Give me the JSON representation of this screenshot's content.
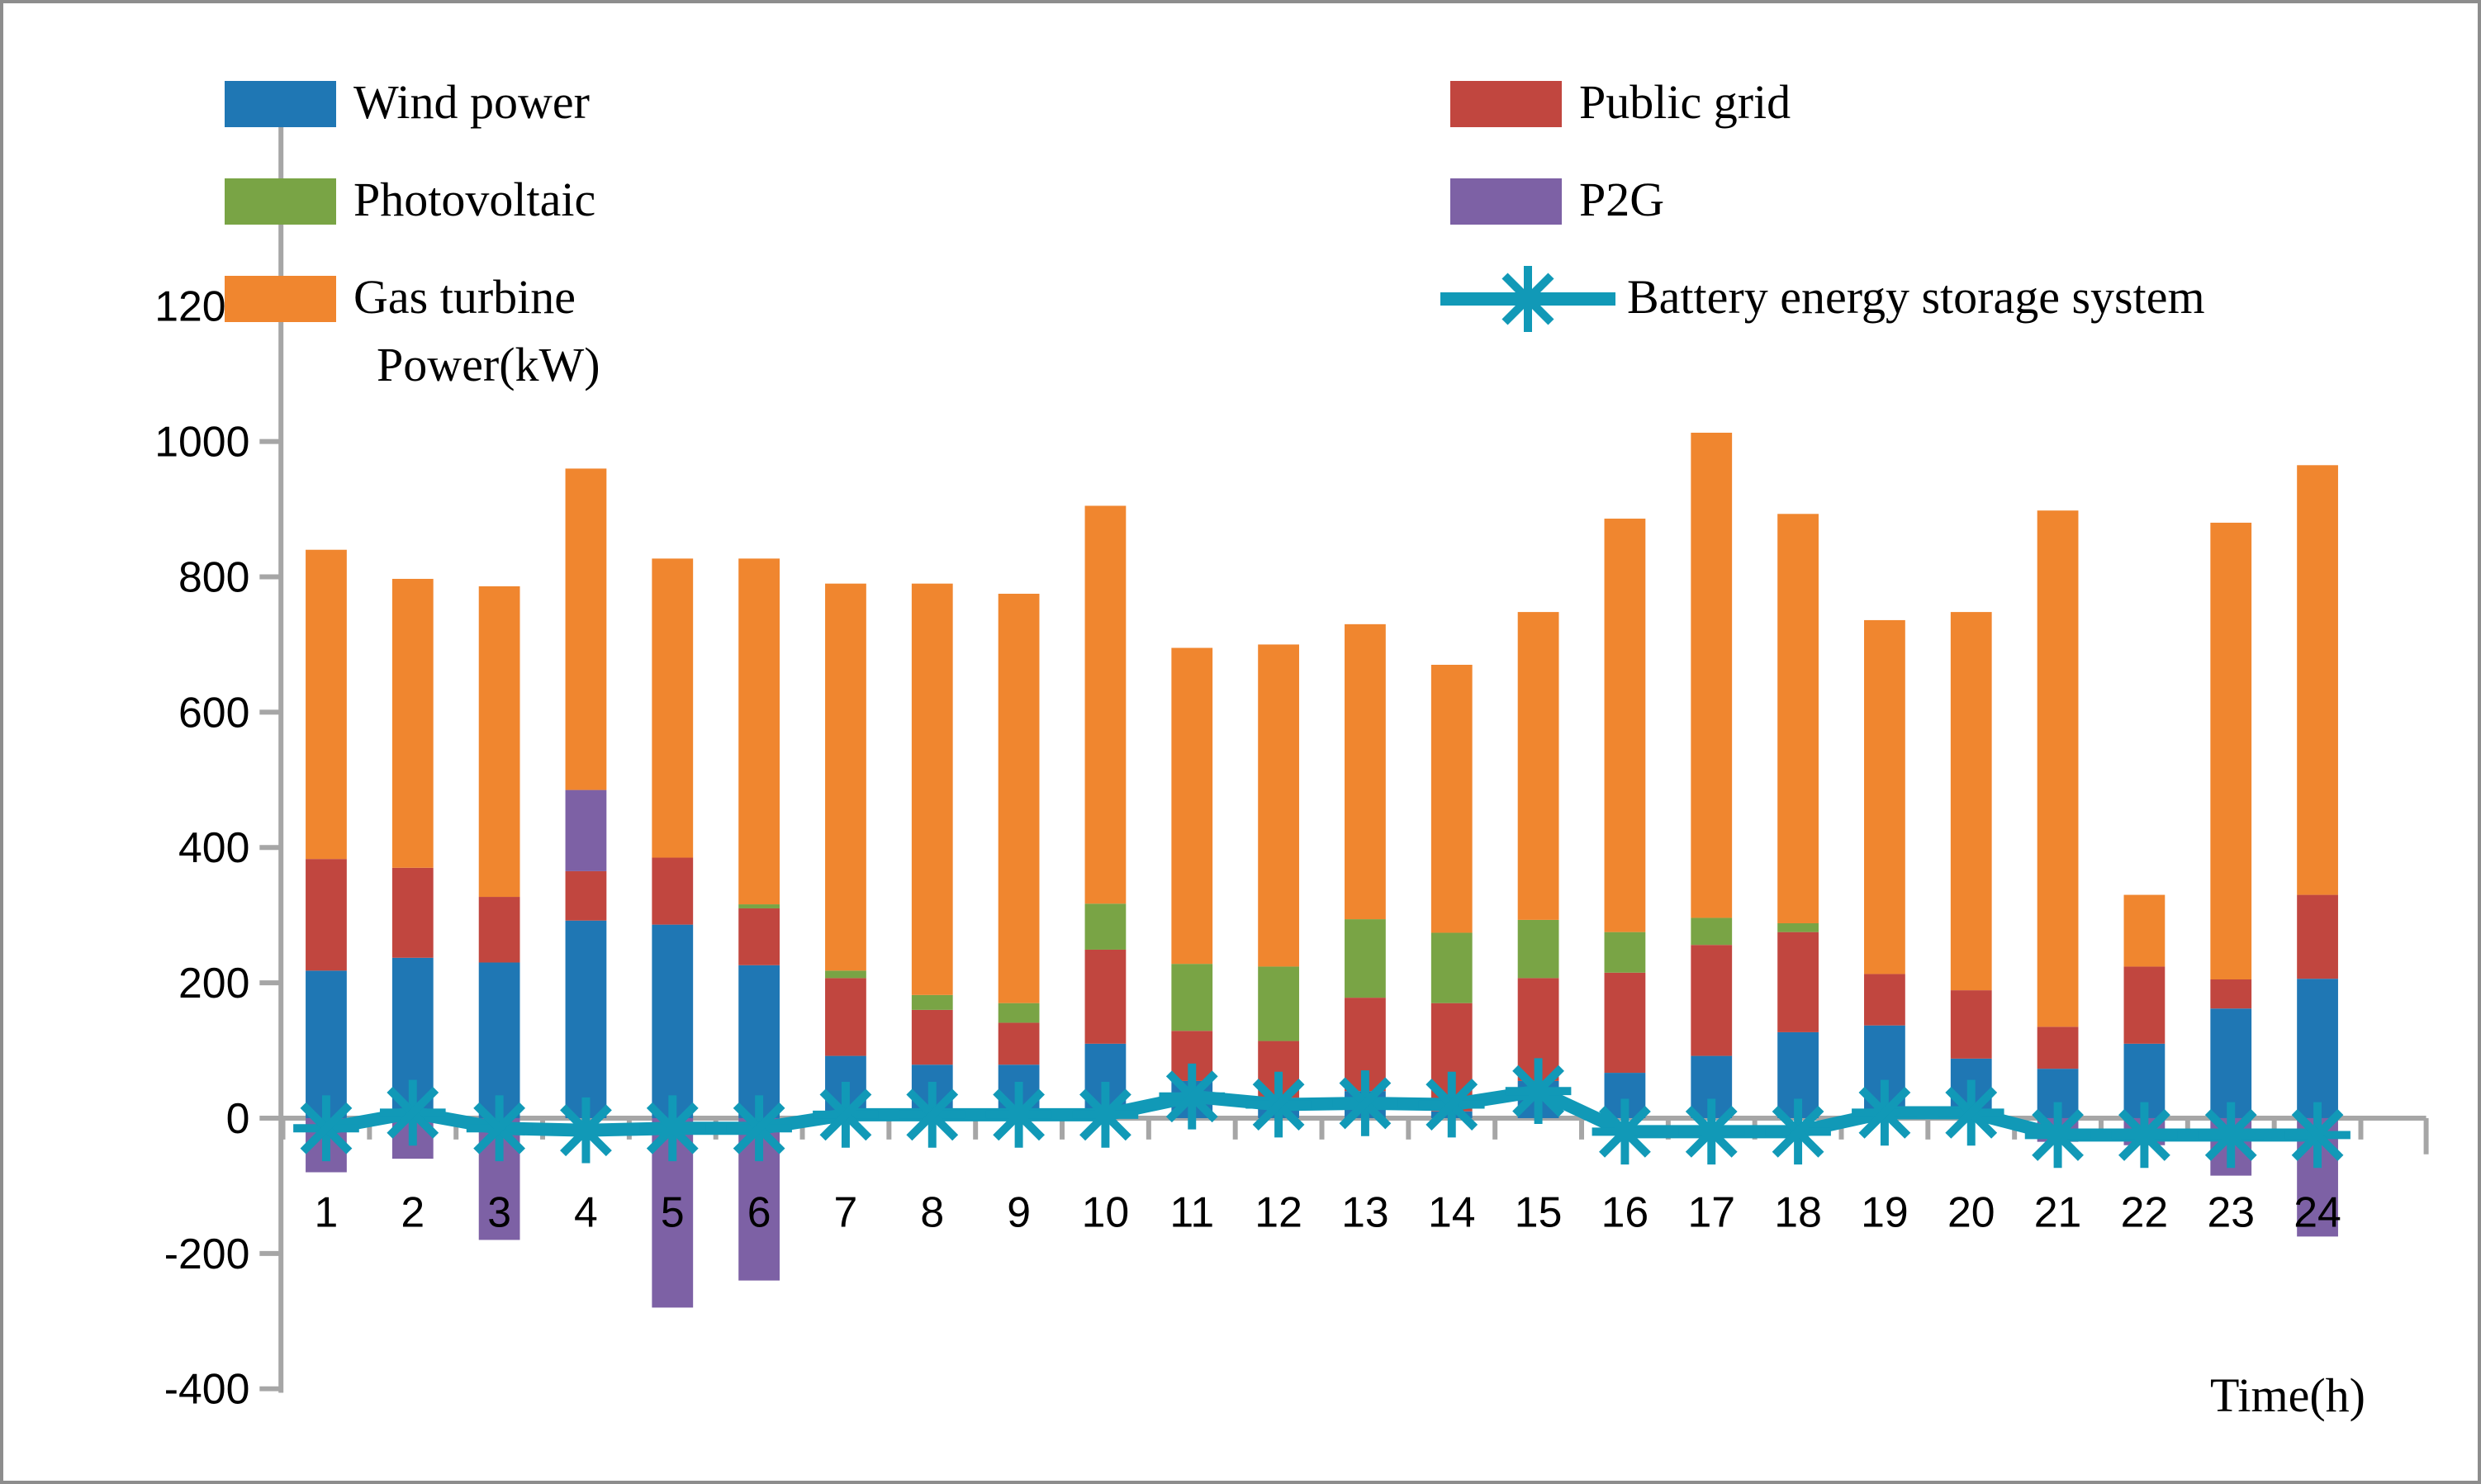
{
  "titles": {
    "y_axis": "Power(kW)",
    "x_axis": "Time(h)"
  },
  "legend": {
    "items": [
      {
        "label": "Wind power",
        "color": "#1f77b4",
        "marker": "rect"
      },
      {
        "label": "Photovoltaic",
        "color": "#79a445",
        "marker": "rect"
      },
      {
        "label": "Gas turbine",
        "color": "#f0862f",
        "marker": "rect"
      },
      {
        "label": "Public grid",
        "color": "#c1463f",
        "marker": "rect"
      },
      {
        "label": "P2G",
        "color": "#7d61a5",
        "marker": "rect"
      },
      {
        "label": "Battery energy storage system",
        "color": "#1199b7",
        "marker": "line-asterisk"
      }
    ]
  },
  "chart_data": {
    "type": "bar",
    "stacked": true,
    "title": "",
    "xlabel": "Time(h)",
    "ylabel": "Power(kW)",
    "grid": false,
    "legend_position": "top",
    "categories": [
      1,
      2,
      3,
      4,
      5,
      6,
      7,
      8,
      9,
      10,
      11,
      12,
      13,
      14,
      15,
      16,
      17,
      18,
      19,
      20,
      21,
      22,
      23,
      24
    ],
    "y_axis": {
      "min": -400,
      "max": 1200,
      "tick_interval": 200,
      "ticks": [
        1200,
        1000,
        800,
        600,
        400,
        200,
        0,
        -200,
        -400
      ]
    },
    "series": [
      {
        "name": "Wind power",
        "type": "bar",
        "color": "#1f77b4",
        "values": [
          218,
          237,
          230,
          292,
          286,
          226,
          92,
          79,
          79,
          110,
          55,
          30,
          40,
          10,
          55,
          67,
          92,
          127,
          137,
          88,
          73,
          110,
          162,
          206
        ]
      },
      {
        "name": "Public grid",
        "type": "bar",
        "color": "#c1463f",
        "values": [
          165,
          133,
          97,
          73,
          99,
          84,
          115,
          81,
          62,
          139,
          74,
          84,
          138,
          160,
          152,
          148,
          164,
          148,
          76,
          101,
          62,
          114,
          43,
          124
        ]
      },
      {
        "name": "Photovoltaic",
        "type": "bar",
        "color": "#79a445",
        "values": [
          0,
          0,
          0,
          0,
          0,
          6,
          11,
          22,
          29,
          68,
          99,
          110,
          116,
          104,
          86,
          60,
          40,
          13,
          0,
          0,
          0,
          0,
          0,
          0
        ]
      },
      {
        "name": "P2G",
        "type": "bar",
        "color": "#7d61a5",
        "values": [
          -80,
          -60,
          -180,
          120,
          -280,
          -240,
          0,
          0,
          0,
          0,
          0,
          0,
          0,
          0,
          0,
          0,
          0,
          0,
          0,
          0,
          -35,
          -40,
          -85,
          -175
        ]
      },
      {
        "name": "Gas turbine",
        "type": "bar",
        "color": "#f0862f",
        "values": [
          457,
          427,
          459,
          475,
          442,
          511,
          572,
          608,
          605,
          588,
          467,
          476,
          436,
          396,
          455,
          611,
          717,
          605,
          523,
          559,
          763,
          106,
          675,
          635
        ]
      },
      {
        "name": "Battery energy storage system",
        "type": "line",
        "color": "#1199b7",
        "values": [
          -15,
          8,
          -15,
          -18,
          -15,
          -15,
          5,
          5,
          5,
          5,
          32,
          20,
          22,
          20,
          40,
          -20,
          -20,
          -20,
          8,
          8,
          -25,
          -25,
          -25,
          -25
        ]
      }
    ],
    "stack_totals": [
      840,
      797,
      786,
      960,
      827,
      827,
      790,
      790,
      775,
      905,
      695,
      700,
      730,
      670,
      748,
      886,
      1013,
      893,
      736,
      748,
      898,
      330,
      880,
      965
    ]
  }
}
